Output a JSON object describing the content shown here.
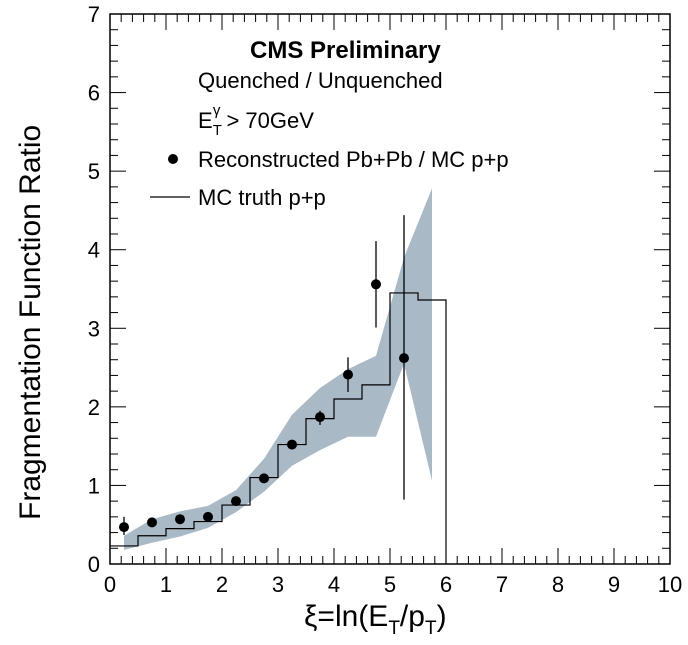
{
  "chart_data": {
    "type": "scatter",
    "xlabel": {
      "base": "ξ=ln(E",
      "sub1": "T",
      "mid": "/p",
      "sub2": "T",
      "end": ")"
    },
    "ylabel": "Fragmentation Function Ratio",
    "xlim": [
      0,
      10
    ],
    "ylim": [
      0,
      7
    ],
    "xticks": [
      "0",
      "1",
      "2",
      "3",
      "4",
      "5",
      "6",
      "7",
      "8",
      "9",
      "10"
    ],
    "yticks": [
      "0",
      "1",
      "2",
      "3",
      "4",
      "5",
      "6",
      "7"
    ],
    "header": "CMS Preliminary",
    "subheader": "Quenched / Unquenched",
    "cut": {
      "base": "E",
      "sub": "T",
      "sup": "γ",
      "rest": " > 70GeV"
    },
    "legend": [
      {
        "marker": "dot",
        "label": "Reconstructed Pb+Pb / MC p+p"
      },
      {
        "marker": "line",
        "label": "MC truth p+p"
      }
    ],
    "series": [
      {
        "name": "Reconstructed Pb+Pb / MC p+p",
        "kind": "points",
        "color": "#000000",
        "points": [
          {
            "x": 0.25,
            "y": 0.47,
            "yerr_lo": 0.1,
            "yerr_hi": 0.13
          },
          {
            "x": 0.75,
            "y": 0.53,
            "yerr_lo": 0.05,
            "yerr_hi": 0.05
          },
          {
            "x": 1.25,
            "y": 0.57,
            "yerr_lo": 0.03,
            "yerr_hi": 0.03
          },
          {
            "x": 1.75,
            "y": 0.6,
            "yerr_lo": 0.03,
            "yerr_hi": 0.03
          },
          {
            "x": 2.25,
            "y": 0.8,
            "yerr_lo": 0.03,
            "yerr_hi": 0.03
          },
          {
            "x": 2.75,
            "y": 1.09,
            "yerr_lo": 0.04,
            "yerr_hi": 0.04
          },
          {
            "x": 3.25,
            "y": 1.52,
            "yerr_lo": 0.05,
            "yerr_hi": 0.05
          },
          {
            "x": 3.75,
            "y": 1.87,
            "yerr_lo": 0.1,
            "yerr_hi": 0.08
          },
          {
            "x": 4.25,
            "y": 2.41,
            "yerr_lo": 0.22,
            "yerr_hi": 0.22
          },
          {
            "x": 4.75,
            "y": 3.56,
            "yerr_lo": 0.55,
            "yerr_hi": 0.55
          },
          {
            "x": 5.25,
            "y": 2.62,
            "yerr_lo": 1.8,
            "yerr_hi": 1.82
          }
        ]
      },
      {
        "name": "MC truth p+p",
        "kind": "step",
        "color": "#000000",
        "bins": [
          {
            "x0": 0.0,
            "x1": 0.5,
            "y": 0.23
          },
          {
            "x0": 0.5,
            "x1": 1.0,
            "y": 0.36
          },
          {
            "x0": 1.0,
            "x1": 1.5,
            "y": 0.45
          },
          {
            "x0": 1.5,
            "x1": 2.0,
            "y": 0.54
          },
          {
            "x0": 2.0,
            "x1": 2.5,
            "y": 0.75
          },
          {
            "x0": 2.5,
            "x1": 3.0,
            "y": 1.1
          },
          {
            "x0": 3.0,
            "x1": 3.5,
            "y": 1.52
          },
          {
            "x0": 3.5,
            "x1": 4.0,
            "y": 1.85
          },
          {
            "x0": 4.0,
            "x1": 4.5,
            "y": 2.1
          },
          {
            "x0": 4.5,
            "x1": 5.0,
            "y": 2.28
          },
          {
            "x0": 5.0,
            "x1": 5.5,
            "y": 3.45
          },
          {
            "x0": 5.5,
            "x1": 6.0,
            "y": 3.36
          }
        ]
      },
      {
        "name": "systematic band",
        "kind": "band",
        "color": "#a9b9c6",
        "upper": [
          [
            0.25,
            0.36
          ],
          [
            0.75,
            0.57
          ],
          [
            1.25,
            0.67
          ],
          [
            1.75,
            0.74
          ],
          [
            2.25,
            0.94
          ],
          [
            2.75,
            1.34
          ],
          [
            3.25,
            1.9
          ],
          [
            3.75,
            2.24
          ],
          [
            4.25,
            2.48
          ],
          [
            4.75,
            2.65
          ],
          [
            5.25,
            3.9
          ],
          [
            5.75,
            4.78
          ]
        ],
        "lower": [
          [
            0.25,
            0.18
          ],
          [
            0.75,
            0.27
          ],
          [
            1.25,
            0.35
          ],
          [
            1.75,
            0.46
          ],
          [
            2.25,
            0.66
          ],
          [
            2.75,
            0.92
          ],
          [
            3.25,
            1.25
          ],
          [
            3.75,
            1.45
          ],
          [
            4.25,
            1.62
          ],
          [
            4.75,
            1.62
          ],
          [
            5.25,
            2.55
          ],
          [
            5.75,
            1.06
          ]
        ]
      }
    ]
  }
}
